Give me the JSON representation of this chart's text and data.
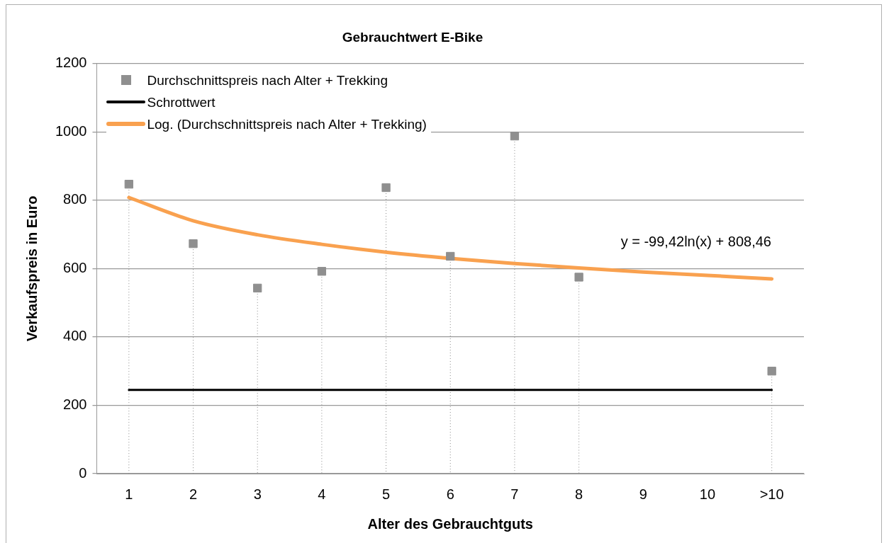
{
  "chart_data": {
    "type": "line",
    "title": "Gebrauchtwert E-Bike",
    "xlabel": "Alter des Gebrauchtguts",
    "ylabel": "Verkaufspreis in Euro",
    "categories": [
      "1",
      "2",
      "3",
      "4",
      "5",
      "6",
      "7",
      "8",
      "9",
      "10",
      ">10"
    ],
    "series": [
      {
        "name": "Durchschnittspreis nach Alter + Trekking",
        "type": "scatter",
        "marker": "square",
        "color": "#8f8f8f",
        "values": [
          847,
          673,
          543,
          592,
          837,
          636,
          988,
          575,
          null,
          null,
          300
        ]
      },
      {
        "name": "Schrottwert",
        "marker": "none",
        "color": "#000000",
        "values": [
          245,
          245,
          245,
          245,
          245,
          245,
          245,
          245,
          245,
          245,
          245
        ]
      },
      {
        "name": "Log. (Durchschnittspreis nach Alter + Trekking)",
        "marker": "none",
        "color": "#f9a14f",
        "values": [
          808,
          740,
          699,
          671,
          648,
          630,
          615,
          602,
          590,
          580,
          570
        ]
      }
    ],
    "ylim": [
      0,
      1200
    ],
    "yticks": [
      0,
      200,
      400,
      600,
      800,
      1000,
      1200
    ],
    "grid": "y",
    "legend": "top left",
    "annotations": [
      "y = -99,42ln(x) + 808,46"
    ]
  }
}
